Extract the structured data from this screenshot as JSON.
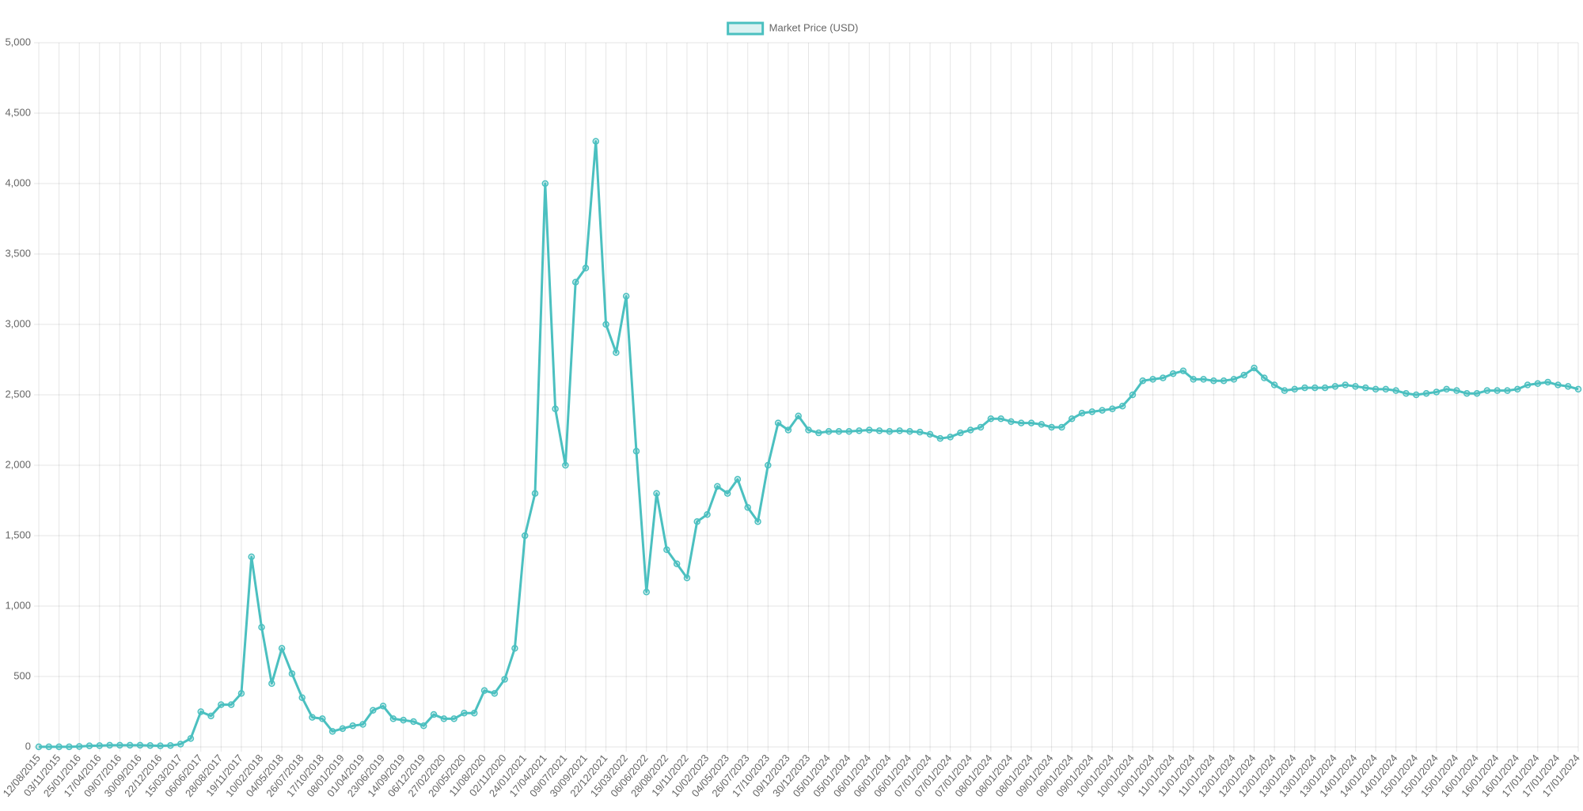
{
  "chart_data": {
    "type": "line",
    "categories": [
      "12/08/2015",
      null,
      "03/11/2015",
      null,
      "25/01/2016",
      null,
      "17/04/2016",
      null,
      "09/07/2016",
      null,
      "30/09/2016",
      null,
      "22/12/2016",
      null,
      "15/03/2017",
      null,
      "06/06/2017",
      null,
      "28/08/2017",
      null,
      "19/11/2017",
      null,
      "10/02/2018",
      null,
      "04/05/2018",
      null,
      "26/07/2018",
      null,
      "17/10/2018",
      null,
      "08/01/2019",
      null,
      "01/04/2019",
      null,
      "23/06/2019",
      null,
      "14/09/2019",
      null,
      "06/12/2019",
      null,
      "27/02/2020",
      null,
      "20/05/2020",
      null,
      "11/08/2020",
      null,
      "02/11/2020",
      null,
      "24/01/2021",
      null,
      "17/04/2021",
      null,
      "09/07/2021",
      null,
      "30/09/2021",
      null,
      "22/12/2021",
      null,
      "15/03/2022",
      null,
      "06/06/2022",
      null,
      "28/08/2022",
      null,
      "19/11/2022",
      null,
      "10/02/2023",
      null,
      "04/05/2023",
      null,
      "26/07/2023",
      null,
      "17/10/2023",
      null,
      "09/12/2023",
      null,
      "30/12/2023",
      null,
      "05/01/2024",
      null,
      "05/01/2024",
      null,
      "06/01/2024",
      null,
      "06/01/2024",
      null,
      "06/01/2024",
      null,
      "07/01/2024",
      null,
      "07/01/2024",
      null,
      "07/01/2024",
      null,
      "08/01/2024",
      null,
      "08/01/2024",
      null,
      "08/01/2024",
      null,
      "09/01/2024",
      null,
      "09/01/2024",
      null,
      "09/01/2024",
      null,
      "10/01/2024",
      null,
      "10/01/2024",
      null,
      "10/01/2024",
      null,
      "11/01/2024",
      null,
      "11/01/2024",
      null,
      "11/01/2024",
      null,
      "12/01/2024",
      null,
      "12/01/2024",
      null,
      "12/01/2024",
      null,
      "13/01/2024",
      null,
      "13/01/2024",
      null,
      "13/01/2024",
      null,
      "14/01/2024",
      null,
      "14/01/2024",
      null,
      "14/01/2024",
      null,
      "15/01/2024",
      null,
      "15/01/2024",
      null,
      "15/01/2024",
      null,
      "16/01/2024",
      null,
      "16/01/2024",
      null,
      "16/01/2024",
      null,
      "17/01/2024",
      null,
      "17/01/2024",
      null,
      "17/01/2024"
    ],
    "series": [
      {
        "name": "Market Price (USD)",
        "color": "#4bc0c0",
        "fill": "rgba(75,192,192,0.2)",
        "values": [
          1,
          1,
          1,
          1,
          3,
          8,
          9,
          12,
          12,
          12,
          12,
          10,
          8,
          10,
          20,
          60,
          250,
          220,
          300,
          300,
          380,
          1350,
          850,
          450,
          700,
          520,
          350,
          210,
          200,
          110,
          130,
          150,
          160,
          260,
          290,
          200,
          190,
          180,
          150,
          230,
          200,
          200,
          240,
          240,
          400,
          380,
          480,
          700,
          1500,
          1800,
          4000,
          2400,
          2000,
          3300,
          3400,
          4300,
          3000,
          2800,
          3200,
          2100,
          1100,
          1800,
          1400,
          1300,
          1200,
          1600,
          1650,
          1850,
          1800,
          1900,
          1700,
          1600,
          2000,
          2300,
          2250,
          2350,
          2250,
          2230,
          2240,
          2240,
          2240,
          2245,
          2250,
          2245,
          2240,
          2245,
          2240,
          2235,
          2220,
          2190,
          2200,
          2230,
          2250,
          2270,
          2330,
          2330,
          2310,
          2300,
          2300,
          2290,
          2270,
          2270,
          2330,
          2370,
          2380,
          2390,
          2400,
          2420,
          2500,
          2600,
          2610,
          2620,
          2650,
          2670,
          2610,
          2610,
          2600,
          2600,
          2610,
          2640,
          2690,
          2620,
          2570,
          2530,
          2540,
          2550,
          2550,
          2550,
          2560,
          2570,
          2560,
          2550,
          2540,
          2540,
          2530,
          2510,
          2500,
          2510,
          2520,
          2540,
          2530,
          2510,
          2510,
          2530,
          2530,
          2530,
          2540,
          2570,
          2580,
          2590,
          2570,
          2560,
          2540
        ]
      }
    ],
    "ylim": [
      0,
      5000
    ],
    "yticks": [
      0,
      500,
      {
        "value": 1000,
        "label": "1,000"
      },
      {
        "value": 1500,
        "label": "1,500"
      },
      {
        "value": 2000,
        "label": "2,000"
      },
      {
        "value": 2500,
        "label": "2,500"
      },
      {
        "value": 3000,
        "label": "3,000"
      },
      {
        "value": 3500,
        "label": "3,500"
      },
      {
        "value": 4000,
        "label": "4,000"
      },
      {
        "value": 4500,
        "label": "4,500"
      },
      {
        "value": 5000,
        "label": "5,000"
      }
    ],
    "grid": true,
    "legend": "top"
  }
}
